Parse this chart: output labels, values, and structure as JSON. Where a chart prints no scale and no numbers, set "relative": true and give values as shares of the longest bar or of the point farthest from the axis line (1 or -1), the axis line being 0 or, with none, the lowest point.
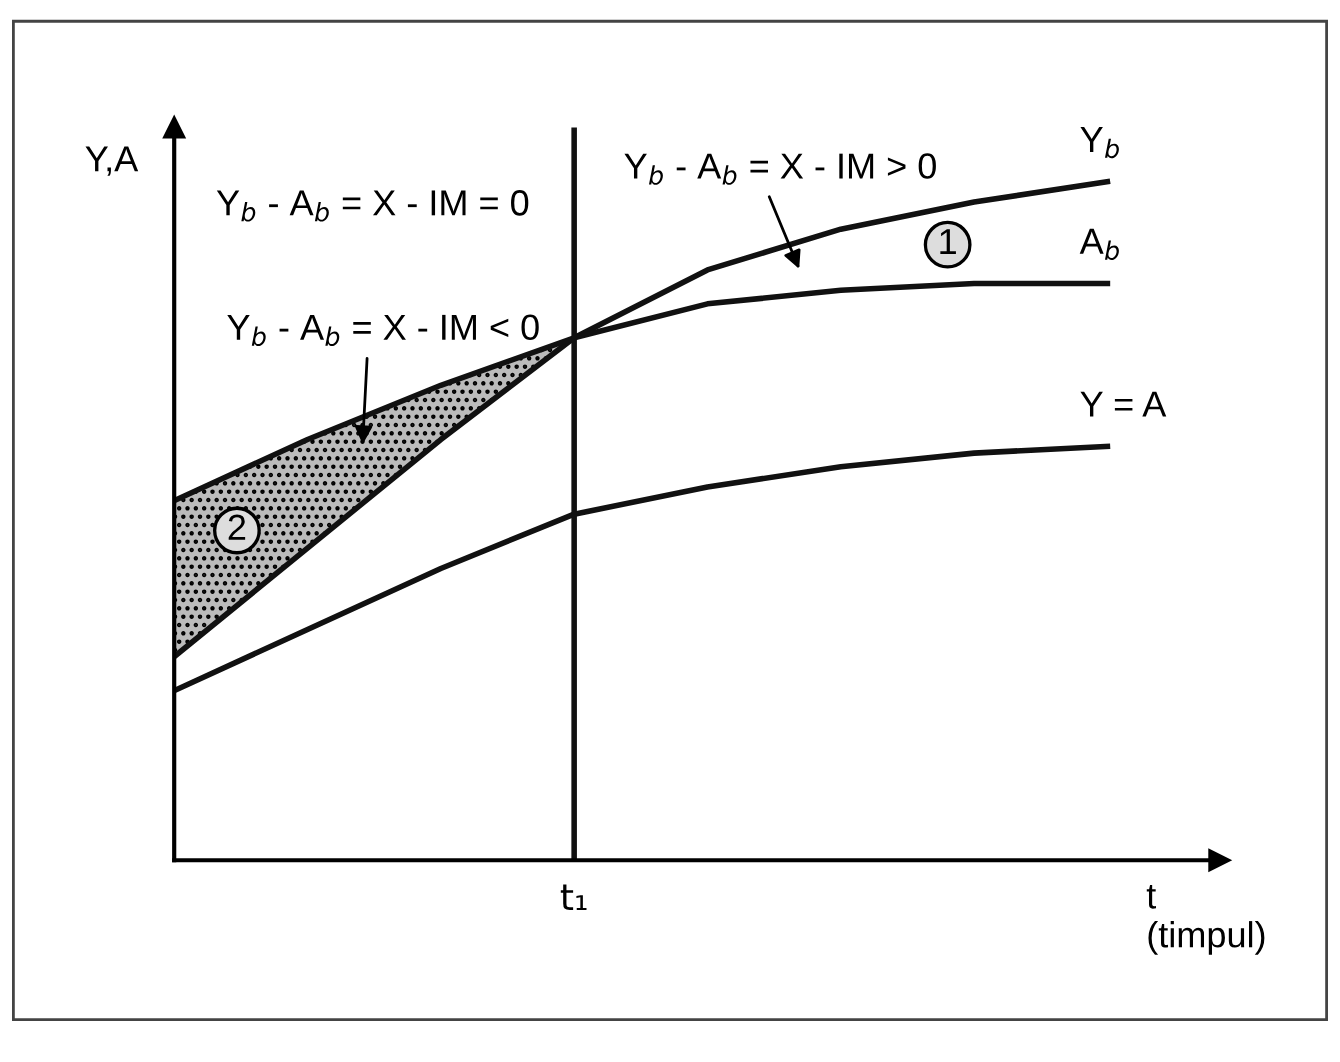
{
  "chart_data": {
    "type": "line",
    "relative": true,
    "xlabel": "t\n(timpul)",
    "ylabel": "Y,A",
    "categories": [
      null,
      null,
      null,
      null,
      null,
      null,
      null,
      null
    ],
    "series": [
      {
        "name": "Y$_{b}$",
        "color": "#111111",
        "values": [
          0.3,
          0.46,
          0.62,
          0.77,
          0.87,
          0.93,
          0.97,
          1.0
        ]
      },
      {
        "name": "A$_{b}$",
        "color": "#111111",
        "values": [
          0.53,
          0.62,
          0.7,
          0.77,
          0.82,
          0.84,
          0.85,
          0.85
        ],
        "lower": [
          0.3,
          0.46,
          0.62,
          0.77,
          null,
          null,
          null,
          null
        ],
        "upper": [
          0.53,
          0.62,
          0.7,
          0.77,
          null,
          null,
          null,
          null
        ]
      },
      {
        "name": "Y = A",
        "color": "#111111",
        "values": [
          0.25,
          0.34,
          0.43,
          0.51,
          0.55,
          0.58,
          0.6,
          0.61
        ]
      }
    ],
    "annotations": [
      "t₁",
      "Y$_{b}$ - A$_{b}$ = X - IM = 0",
      "Y$_{b}$ - A$_{b}$ = X - IM < 0",
      "Y$_{b}$ - A$_{b}$ = X - IM > 0",
      "2",
      "1"
    ],
    "legend": false,
    "marker": "none",
    "line_style": "solid"
  }
}
